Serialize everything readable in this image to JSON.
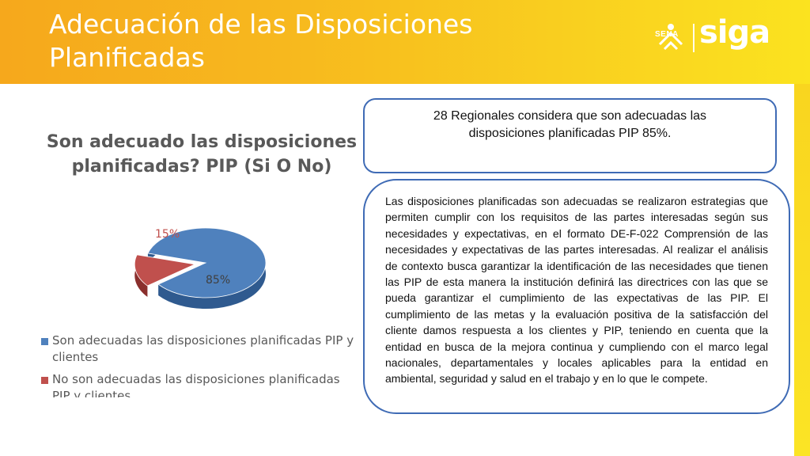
{
  "header": {
    "title": "Adecuación de las Disposiciones Planificadas",
    "logo_sena": "SENA",
    "logo_siga": "siga",
    "background_color": "#f7b81e"
  },
  "chart": {
    "title": "Son adecuado las disposiciones planificadas? PIP (Si O No)",
    "legend": [
      {
        "label": "Son adecuadas las disposiciones planificadas PIP y clientes",
        "color": "#4f81bd"
      },
      {
        "label": "No son adecuadas las disposiciones planificadas PIP y clientes",
        "color": "#c0504d"
      }
    ]
  },
  "chart_data": {
    "type": "pie",
    "title": "Son adecuado las disposiciones planificadas? PIP (Si O No)",
    "categories": [
      "Son adecuadas las disposiciones planificadas PIP y clientes",
      "No son adecuadas las disposiciones planificadas PIP y clientes"
    ],
    "values": [
      85,
      15
    ],
    "data_labels": [
      "85%",
      "15%"
    ],
    "colors": [
      "#4f81bd",
      "#c0504d"
    ],
    "legend_position": "bottom"
  },
  "summary_box": {
    "text": "28 Regionales  considera que son adecuadas las disposiciones planificadas PIP 85%."
  },
  "detail_box": {
    "text": "Las disposiciones planificadas son adecuadas se realizaron  estrategias que permiten cumplir con los requisitos de las partes interesadas según sus necesidades y expectativas, en el  formato DE-F-022 Comprensión de las necesidades y expectativas de las partes interesadas. Al realizar  el análisis de contexto  busca garantizar la identificación de las necesidades que tienen las PIP  de esta manera la institución definirá las  directrices con las que se pueda garantizar el cumplimiento de las expectativas de  las PIP.  El cumplimiento de las metas y la evaluación positiva de la satisfacción del cliente damos respuesta a los clientes y PIP, teniendo en cuenta que la entidad en busca de la mejora continua y cumpliendo con el marco legal nacionales, departamentales y locales aplicables para la entidad en ambiental, seguridad y salud en el trabajo y en lo que le compete."
  }
}
